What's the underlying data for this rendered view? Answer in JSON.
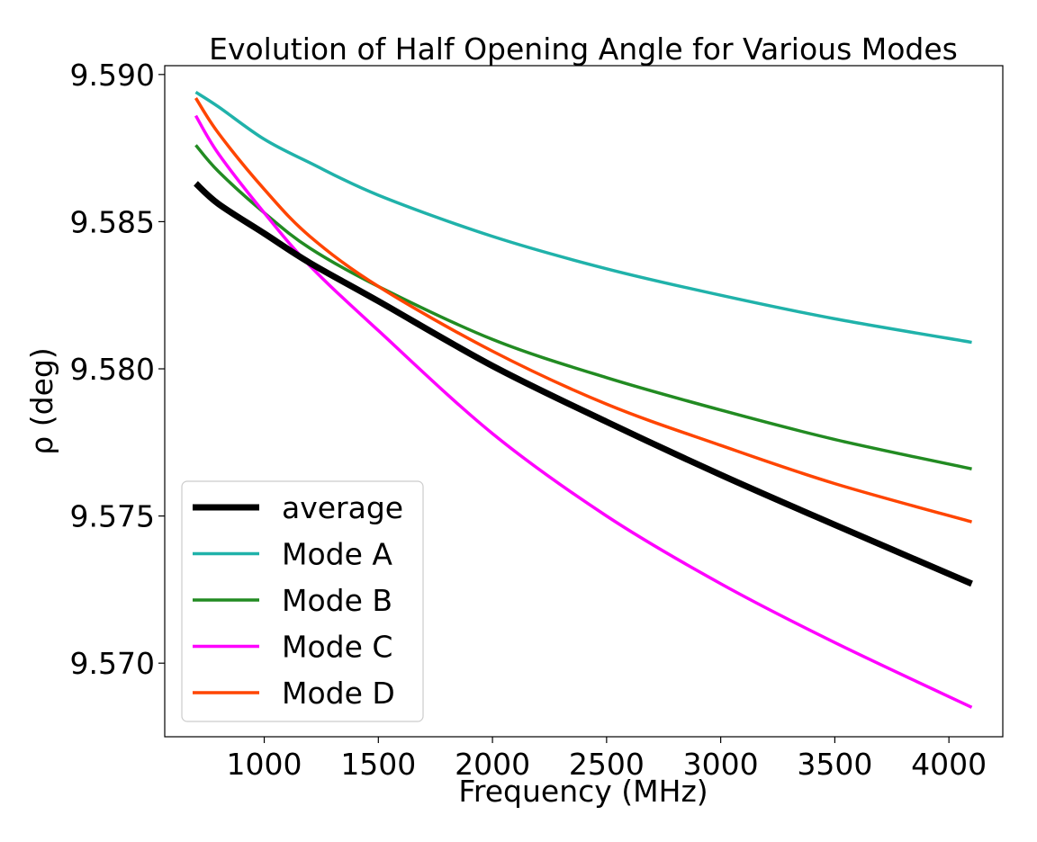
{
  "chart_data": {
    "type": "line",
    "title": "Evolution of Half Opening Angle for Various Modes",
    "xlabel": "Frequency (MHz)",
    "ylabel": "ρ (deg)",
    "xlim": [
      564,
      4236
    ],
    "ylim": [
      9.5675,
      9.5903
    ],
    "xticks": [
      1000,
      1500,
      2000,
      2500,
      3000,
      3500,
      4000
    ],
    "yticks": [
      9.57,
      9.575,
      9.58,
      9.585,
      9.59
    ],
    "xtick_labels": [
      "1000",
      "1500",
      "2000",
      "2500",
      "3000",
      "3500",
      "4000"
    ],
    "ytick_labels": [
      "9.570",
      "9.575",
      "9.580",
      "9.585",
      "9.590"
    ],
    "grid": false,
    "legend_position": "lower-left",
    "x": [
      700,
      800,
      1000,
      1200,
      1500,
      2000,
      2500,
      3000,
      3500,
      4100
    ],
    "series": [
      {
        "name": "average",
        "color": "#000000",
        "linewidth": 7,
        "values": [
          9.5863,
          9.5856,
          9.5846,
          9.5836,
          9.5823,
          9.5801,
          9.5782,
          9.5764,
          9.5747,
          9.5727
        ]
      },
      {
        "name": "Mode A",
        "color": "#20b2aa",
        "linewidth": 3.5,
        "values": [
          9.5894,
          9.5889,
          9.5878,
          9.587,
          9.5859,
          9.5845,
          9.5834,
          9.5825,
          9.5817,
          9.5809
        ]
      },
      {
        "name": "Mode B",
        "color": "#228b22",
        "linewidth": 3.5,
        "values": [
          9.5876,
          9.5867,
          9.5853,
          9.5841,
          9.5828,
          9.581,
          9.5797,
          9.5786,
          9.5776,
          9.5766
        ]
      },
      {
        "name": "Mode C",
        "color": "#ff00ff",
        "linewidth": 3.5,
        "values": [
          9.5886,
          9.5873,
          9.5853,
          9.5835,
          9.5813,
          9.5778,
          9.575,
          9.5727,
          9.5707,
          9.5685
        ]
      },
      {
        "name": "Mode D",
        "color": "#ff4500",
        "linewidth": 3.5,
        "values": [
          9.5892,
          9.588,
          9.5861,
          9.5845,
          9.5828,
          9.5806,
          9.5788,
          9.5774,
          9.5761,
          9.5748
        ]
      }
    ]
  }
}
